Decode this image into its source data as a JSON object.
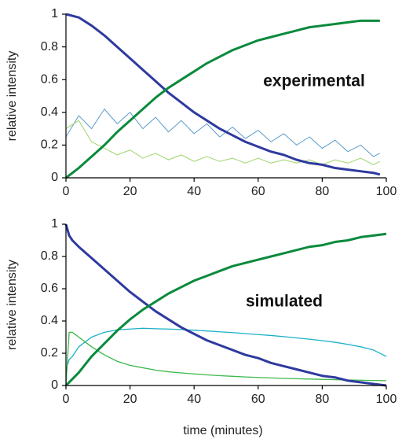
{
  "chart_data": [
    {
      "type": "line",
      "ylabel": "relative intensity",
      "annotation": "experimental",
      "x": [
        0,
        4,
        8,
        12,
        16,
        20,
        24,
        28,
        32,
        36,
        40,
        44,
        48,
        52,
        56,
        60,
        64,
        68,
        72,
        76,
        80,
        84,
        88,
        92,
        96,
        98
      ],
      "series": [
        {
          "color": "#5b9bc8",
          "width": 1,
          "values": [
            0.25,
            0.38,
            0.3,
            0.42,
            0.33,
            0.4,
            0.3,
            0.37,
            0.28,
            0.35,
            0.27,
            0.33,
            0.25,
            0.31,
            0.24,
            0.29,
            0.22,
            0.27,
            0.2,
            0.25,
            0.18,
            0.23,
            0.16,
            0.2,
            0.13,
            0.15
          ]
        },
        {
          "color": "#9fd46a",
          "width": 1,
          "values": [
            0.3,
            0.35,
            0.22,
            0.18,
            0.14,
            0.17,
            0.12,
            0.15,
            0.11,
            0.14,
            0.1,
            0.13,
            0.1,
            0.12,
            0.09,
            0.12,
            0.09,
            0.11,
            0.09,
            0.11,
            0.08,
            0.11,
            0.09,
            0.12,
            0.08,
            0.1
          ]
        },
        {
          "color": "#2e3a9e",
          "width": 3,
          "values": [
            1,
            0.98,
            0.93,
            0.87,
            0.8,
            0.73,
            0.66,
            0.59,
            0.52,
            0.46,
            0.4,
            0.35,
            0.3,
            0.26,
            0.22,
            0.19,
            0.16,
            0.14,
            0.11,
            0.09,
            0.08,
            0.06,
            0.05,
            0.04,
            0.03,
            0.02
          ]
        },
        {
          "color": "#0a8a3c",
          "width": 3,
          "values": [
            0,
            0.06,
            0.13,
            0.2,
            0.28,
            0.35,
            0.42,
            0.49,
            0.55,
            0.6,
            0.65,
            0.7,
            0.74,
            0.78,
            0.81,
            0.84,
            0.86,
            0.88,
            0.9,
            0.92,
            0.93,
            0.94,
            0.95,
            0.96,
            0.96,
            0.96
          ]
        }
      ],
      "xlim": [
        0,
        100
      ],
      "xticks": [
        0,
        20,
        40,
        60,
        80,
        100
      ],
      "ylim": [
        0,
        1
      ],
      "yticks": [
        0,
        0.2,
        0.4,
        0.6,
        0.8,
        1
      ]
    },
    {
      "type": "line",
      "ylabel": "relative intensity",
      "xlabel": "time (minutes)",
      "annotation": "simulated",
      "x": [
        0,
        1,
        2,
        4,
        8,
        12,
        16,
        20,
        24,
        28,
        32,
        36,
        40,
        44,
        48,
        52,
        56,
        60,
        64,
        68,
        72,
        76,
        80,
        84,
        88,
        92,
        96,
        100
      ],
      "series": [
        {
          "color": "#1ab0c8",
          "width": 1.3,
          "values": [
            0.1,
            0.16,
            0.18,
            0.24,
            0.3,
            0.33,
            0.345,
            0.35,
            0.355,
            0.352,
            0.35,
            0.347,
            0.343,
            0.338,
            0.333,
            0.328,
            0.322,
            0.316,
            0.31,
            0.303,
            0.295,
            0.287,
            0.278,
            0.268,
            0.255,
            0.24,
            0.22,
            0.18
          ]
        },
        {
          "color": "#3cb84a",
          "width": 1.3,
          "values": [
            0,
            0.33,
            0.33,
            0.3,
            0.24,
            0.19,
            0.15,
            0.125,
            0.11,
            0.095,
            0.085,
            0.078,
            0.072,
            0.066,
            0.061,
            0.057,
            0.053,
            0.05,
            0.047,
            0.044,
            0.042,
            0.04,
            0.038,
            0.036,
            0.034,
            0.033,
            0.031,
            0.03
          ]
        },
        {
          "color": "#2e3a9e",
          "width": 3,
          "values": [
            1,
            0.93,
            0.9,
            0.86,
            0.79,
            0.72,
            0.65,
            0.58,
            0.52,
            0.46,
            0.41,
            0.36,
            0.32,
            0.28,
            0.25,
            0.22,
            0.19,
            0.17,
            0.14,
            0.12,
            0.1,
            0.08,
            0.06,
            0.05,
            0.03,
            0.02,
            0.01,
            0
          ]
        },
        {
          "color": "#0a8a3c",
          "width": 3,
          "values": [
            0,
            0.02,
            0.04,
            0.08,
            0.18,
            0.26,
            0.34,
            0.41,
            0.47,
            0.52,
            0.57,
            0.61,
            0.65,
            0.68,
            0.71,
            0.74,
            0.76,
            0.78,
            0.8,
            0.82,
            0.84,
            0.86,
            0.87,
            0.89,
            0.9,
            0.92,
            0.93,
            0.94
          ]
        }
      ],
      "xlim": [
        0,
        100
      ],
      "xticks": [
        0,
        20,
        40,
        60,
        80,
        100
      ],
      "ylim": [
        0,
        1
      ],
      "yticks": [
        0,
        0.2,
        0.4,
        0.6,
        0.8,
        1
      ]
    }
  ]
}
